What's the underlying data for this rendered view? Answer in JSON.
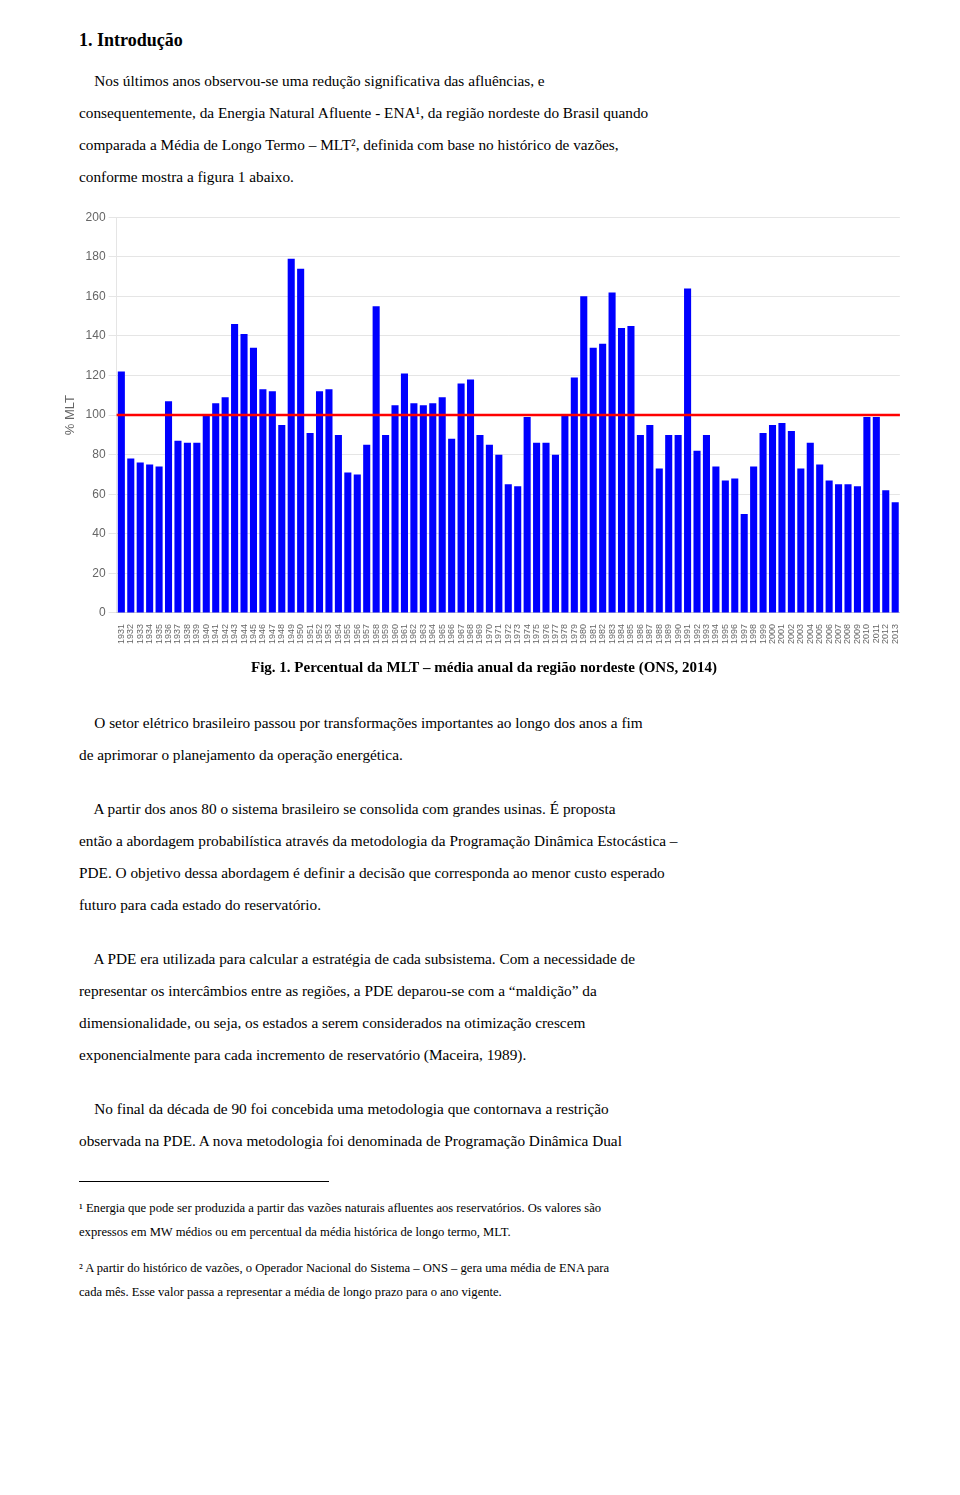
{
  "chart_data": {
    "type": "bar",
    "title": "Fig. 1. Percentual da MLT – média anual da região nordeste (ONS, 2014)",
    "ylabel": "% MLT",
    "categories": [
      "1931",
      "1932",
      "1933",
      "1934",
      "1935",
      "1936",
      "1937",
      "1938",
      "1939",
      "1940",
      "1941",
      "1942",
      "1943",
      "1944",
      "1945",
      "1946",
      "1947",
      "1948",
      "1949",
      "1950",
      "1951",
      "1952",
      "1953",
      "1954",
      "1955",
      "1956",
      "1957",
      "1958",
      "1959",
      "1960",
      "1961",
      "1962",
      "1963",
      "1964",
      "1965",
      "1966",
      "1967",
      "1968",
      "1969",
      "1970",
      "1971",
      "1972",
      "1973",
      "1974",
      "1975",
      "1976",
      "1977",
      "1978",
      "1979",
      "1980",
      "1981",
      "1982",
      "1983",
      "1984",
      "1985",
      "1986",
      "1987",
      "1988",
      "1989",
      "1990",
      "1991",
      "1992",
      "1993",
      "1994",
      "1995",
      "1996",
      "1997",
      "1998",
      "1999",
      "2000",
      "2001",
      "2002",
      "2003",
      "2004",
      "2005",
      "2006",
      "2007",
      "2008",
      "2009",
      "2010",
      "2011",
      "2012",
      "2013"
    ],
    "values": [
      122,
      78,
      76,
      75,
      74,
      107,
      87,
      86,
      86,
      100,
      106,
      109,
      146,
      141,
      134,
      113,
      112,
      95,
      179,
      174,
      91,
      112,
      113,
      90,
      71,
      70,
      85,
      155,
      90,
      105,
      121,
      106,
      105,
      106,
      109,
      88,
      116,
      118,
      90,
      85,
      80,
      65,
      64,
      99,
      86,
      86,
      80,
      100,
      119,
      160,
      134,
      136,
      162,
      144,
      145,
      90,
      95,
      73,
      90,
      90,
      164,
      82,
      90,
      74,
      67,
      68,
      50,
      74,
      91,
      95,
      96,
      92,
      73,
      86,
      75,
      67,
      65,
      65,
      64,
      99,
      99,
      62,
      56
    ],
    "color": "#0000FF",
    "reference_line": {
      "value": 100,
      "color": "#FF0000"
    },
    "ylim": [
      0,
      200
    ],
    "yticks": [
      0,
      20,
      40,
      60,
      80,
      100,
      120,
      140,
      160,
      180,
      200
    ],
    "grid": true
  },
  "document": {
    "heading": "1.  Introdução",
    "intro": [
      "    Nos últimos anos observou-se uma redução significativa das afluências, e",
      "consequentemente, da Energia Natural Afluente - ENA¹, da região nordeste do Brasil quando",
      "comparada a Média de Longo Termo – MLT², definida com base no histórico de vazões,",
      "conforme mostra a figura 1 abaixo."
    ],
    "paragraphs": [
      [
        "    O setor elétrico brasileiro passou por transformações importantes ao longo dos anos a fim",
        "de aprimorar o planejamento da operação energética."
      ],
      [
        "    A partir dos anos 80 o sistema brasileiro se consolida com grandes usinas. É proposta",
        "então a abordagem probabilística através da metodologia da Programação Dinâmica Estocástica –",
        "PDE. O objetivo dessa abordagem é definir a decisão que corresponda ao menor custo esperado",
        "futuro para cada estado do reservatório."
      ],
      [
        "    A PDE era utilizada para calcular a estratégia de cada subsistema. Com a necessidade de",
        "representar os intercâmbios entre as regiões, a PDE deparou-se com a “maldição” da",
        "dimensionalidade, ou seja, os estados a serem considerados na otimização crescem",
        "exponencialmente para cada incremento de reservatório (Maceira, 1989)."
      ],
      [
        "    No final da década de 90 foi concebida uma metodologia que contornava a restrição",
        "observada na PDE. A nova metodologia foi denominada de Programação Dinâmica Dual"
      ]
    ],
    "footnotes": [
      [
        "¹ Energia que pode ser produzida a partir das vazões naturais afluentes aos reservatórios. Os valores são",
        "expressos em MW médios ou em percentual da média histórica de longo termo, MLT."
      ],
      [
        "² A partir do histórico de vazões, o Operador Nacional do Sistema – ONS – gera uma média de ENA para",
        "cada mês. Esse valor passa a representar a média de longo prazo para o ano vigente."
      ]
    ]
  }
}
